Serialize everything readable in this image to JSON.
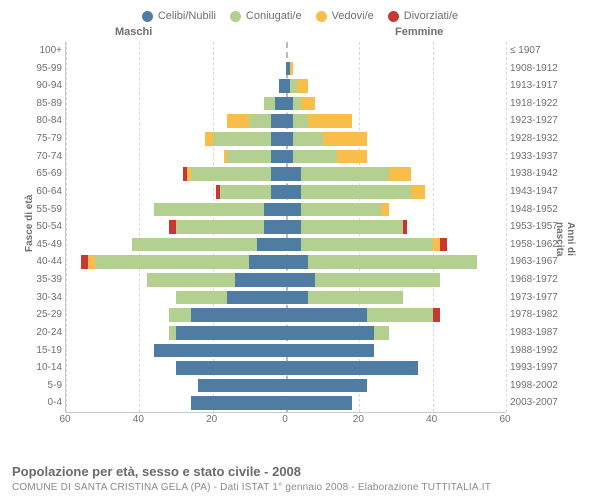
{
  "colors": {
    "celibi": "#4f7ca2",
    "coniugati": "#b3d090",
    "vedovi": "#f9bd4a",
    "divorziati": "#c73734",
    "grid": "#d9d9d9",
    "center": "#bababa",
    "text": "#707070"
  },
  "legend": [
    {
      "label": "Celibi/Nubili",
      "colorKey": "celibi"
    },
    {
      "label": "Coniugati/e",
      "colorKey": "coniugati"
    },
    {
      "label": "Vedovi/e",
      "colorKey": "vedovi"
    },
    {
      "label": "Divorziati/e",
      "colorKey": "divorziati"
    }
  ],
  "columns": {
    "male": "Maschi",
    "female": "Femmine"
  },
  "axes": {
    "left_title": "Fasce di età",
    "right_title": "Anni di nascita",
    "x_ticks": [
      60,
      40,
      20,
      0,
      20,
      40,
      60
    ],
    "x_max": 60
  },
  "footer": {
    "title": "Popolazione per età, sesso e stato civile - 2008",
    "subtitle": "COMUNE DI SANTA CRISTINA GELA (PA) - Dati ISTAT 1° gennaio 2008 - Elaborazione TUTTITALIA.IT"
  },
  "age_groups": [
    {
      "label": "100+",
      "birth": "≤ 1907",
      "m": {
        "cel": 0,
        "con": 0,
        "ved": 0,
        "div": 0
      },
      "f": {
        "cel": 0,
        "con": 0,
        "ved": 0,
        "div": 0
      }
    },
    {
      "label": "95-99",
      "birth": "1908-1912",
      "m": {
        "cel": 0,
        "con": 0,
        "ved": 0,
        "div": 0
      },
      "f": {
        "cel": 1,
        "con": 0,
        "ved": 1,
        "div": 0
      }
    },
    {
      "label": "90-94",
      "birth": "1913-1917",
      "m": {
        "cel": 2,
        "con": 0,
        "ved": 0,
        "div": 0
      },
      "f": {
        "cel": 1,
        "con": 2,
        "ved": 3,
        "div": 0
      }
    },
    {
      "label": "85-89",
      "birth": "1918-1922",
      "m": {
        "cel": 3,
        "con": 3,
        "ved": 0,
        "div": 0
      },
      "f": {
        "cel": 2,
        "con": 2,
        "ved": 4,
        "div": 0
      }
    },
    {
      "label": "80-84",
      "birth": "1923-1927",
      "m": {
        "cel": 4,
        "con": 6,
        "ved": 6,
        "div": 0
      },
      "f": {
        "cel": 2,
        "con": 4,
        "ved": 12,
        "div": 0
      }
    },
    {
      "label": "75-79",
      "birth": "1928-1932",
      "m": {
        "cel": 4,
        "con": 16,
        "ved": 2,
        "div": 0
      },
      "f": {
        "cel": 2,
        "con": 8,
        "ved": 12,
        "div": 0
      }
    },
    {
      "label": "70-74",
      "birth": "1933-1937",
      "m": {
        "cel": 4,
        "con": 12,
        "ved": 1,
        "div": 0
      },
      "f": {
        "cel": 2,
        "con": 12,
        "ved": 8,
        "div": 0
      }
    },
    {
      "label": "65-69",
      "birth": "1938-1942",
      "m": {
        "cel": 4,
        "con": 22,
        "ved": 1,
        "div": 1
      },
      "f": {
        "cel": 4,
        "con": 24,
        "ved": 6,
        "div": 0
      }
    },
    {
      "label": "60-64",
      "birth": "1943-1947",
      "m": {
        "cel": 4,
        "con": 14,
        "ved": 0,
        "div": 1
      },
      "f": {
        "cel": 4,
        "con": 30,
        "ved": 4,
        "div": 0
      }
    },
    {
      "label": "55-59",
      "birth": "1948-1952",
      "m": {
        "cel": 6,
        "con": 30,
        "ved": 0,
        "div": 0
      },
      "f": {
        "cel": 4,
        "con": 22,
        "ved": 2,
        "div": 0
      }
    },
    {
      "label": "50-54",
      "birth": "1953-1957",
      "m": {
        "cel": 6,
        "con": 24,
        "ved": 0,
        "div": 2
      },
      "f": {
        "cel": 4,
        "con": 28,
        "ved": 0,
        "div": 1
      }
    },
    {
      "label": "45-49",
      "birth": "1958-1962",
      "m": {
        "cel": 8,
        "con": 34,
        "ved": 0,
        "div": 0
      },
      "f": {
        "cel": 4,
        "con": 36,
        "ved": 2,
        "div": 2
      }
    },
    {
      "label": "40-44",
      "birth": "1963-1967",
      "m": {
        "cel": 10,
        "con": 42,
        "ved": 2,
        "div": 2
      },
      "f": {
        "cel": 6,
        "con": 46,
        "ved": 0,
        "div": 0
      }
    },
    {
      "label": "35-39",
      "birth": "1968-1972",
      "m": {
        "cel": 14,
        "con": 24,
        "ved": 0,
        "div": 0
      },
      "f": {
        "cel": 8,
        "con": 34,
        "ved": 0,
        "div": 0
      }
    },
    {
      "label": "30-34",
      "birth": "1973-1977",
      "m": {
        "cel": 16,
        "con": 14,
        "ved": 0,
        "div": 0
      },
      "f": {
        "cel": 6,
        "con": 26,
        "ved": 0,
        "div": 0
      }
    },
    {
      "label": "25-29",
      "birth": "1978-1982",
      "m": {
        "cel": 26,
        "con": 6,
        "ved": 0,
        "div": 0
      },
      "f": {
        "cel": 22,
        "con": 18,
        "ved": 0,
        "div": 2
      }
    },
    {
      "label": "20-24",
      "birth": "1983-1987",
      "m": {
        "cel": 30,
        "con": 2,
        "ved": 0,
        "div": 0
      },
      "f": {
        "cel": 24,
        "con": 4,
        "ved": 0,
        "div": 0
      }
    },
    {
      "label": "15-19",
      "birth": "1988-1992",
      "m": {
        "cel": 36,
        "con": 0,
        "ved": 0,
        "div": 0
      },
      "f": {
        "cel": 24,
        "con": 0,
        "ved": 0,
        "div": 0
      }
    },
    {
      "label": "10-14",
      "birth": "1993-1997",
      "m": {
        "cel": 30,
        "con": 0,
        "ved": 0,
        "div": 0
      },
      "f": {
        "cel": 36,
        "con": 0,
        "ved": 0,
        "div": 0
      }
    },
    {
      "label": "5-9",
      "birth": "1998-2002",
      "m": {
        "cel": 24,
        "con": 0,
        "ved": 0,
        "div": 0
      },
      "f": {
        "cel": 22,
        "con": 0,
        "ved": 0,
        "div": 0
      }
    },
    {
      "label": "0-4",
      "birth": "2003-2007",
      "m": {
        "cel": 26,
        "con": 0,
        "ved": 0,
        "div": 0
      },
      "f": {
        "cel": 18,
        "con": 0,
        "ved": 0,
        "div": 0
      }
    }
  ]
}
